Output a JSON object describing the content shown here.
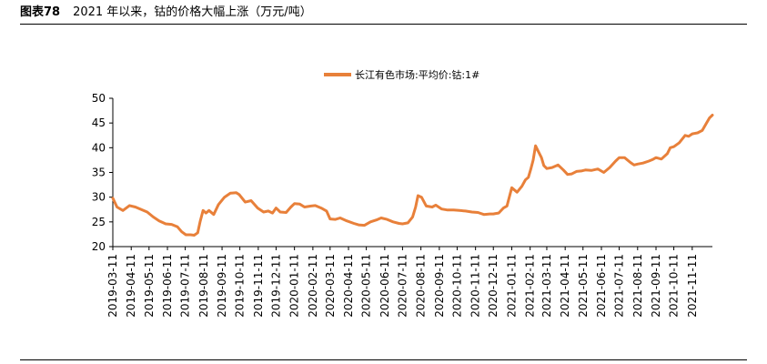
{
  "figure": {
    "number": "图表78",
    "title": "2021 年以来，钴的价格大幅上涨（万元/吨）"
  },
  "chart_data": {
    "type": "line",
    "title": "",
    "xlabel": "",
    "ylabel": "",
    "ylim": [
      20,
      50
    ],
    "yticks": [
      20,
      25,
      30,
      35,
      40,
      45,
      50
    ],
    "xlim": [
      "2019-03-11",
      "2021-12-15"
    ],
    "xticks": [
      "2019-03-11",
      "2019-04-11",
      "2019-05-11",
      "2019-06-11",
      "2019-07-11",
      "2019-08-11",
      "2019-09-11",
      "2019-10-11",
      "2019-11-11",
      "2019-12-11",
      "2020-01-11",
      "2020-02-11",
      "2020-03-11",
      "2020-04-11",
      "2020-05-11",
      "2020-06-11",
      "2020-07-11",
      "2020-08-11",
      "2020-09-11",
      "2020-10-11",
      "2020-11-11",
      "2020-12-11",
      "2021-01-11",
      "2021-02-11",
      "2021-03-11",
      "2021-04-11",
      "2021-05-11",
      "2021-06-11",
      "2021-07-11",
      "2021-08-11",
      "2021-09-11",
      "2021-10-11",
      "2021-11-11"
    ],
    "grid": false,
    "legend_position": "top",
    "color": "#E8803A",
    "series": [
      {
        "name": "长江有色市场:平均价:钴:1#",
        "x": [
          "2019-03-11",
          "2019-03-18",
          "2019-03-28",
          "2019-04-08",
          "2019-04-18",
          "2019-04-28",
          "2019-05-08",
          "2019-05-18",
          "2019-05-28",
          "2019-06-08",
          "2019-06-18",
          "2019-06-28",
          "2019-07-05",
          "2019-07-12",
          "2019-07-20",
          "2019-07-26",
          "2019-08-01",
          "2019-08-05",
          "2019-08-10",
          "2019-08-15",
          "2019-08-20",
          "2019-08-28",
          "2019-09-05",
          "2019-09-15",
          "2019-09-25",
          "2019-10-05",
          "2019-10-10",
          "2019-10-20",
          "2019-10-30",
          "2019-11-10",
          "2019-11-20",
          "2019-11-28",
          "2019-12-05",
          "2019-12-11",
          "2019-12-18",
          "2019-12-28",
          "2020-01-05",
          "2020-01-11",
          "2020-01-20",
          "2020-01-28",
          "2020-02-08",
          "2020-02-15",
          "2020-02-25",
          "2020-03-05",
          "2020-03-11",
          "2020-03-20",
          "2020-03-28",
          "2020-04-08",
          "2020-04-20",
          "2020-04-28",
          "2020-05-08",
          "2020-05-18",
          "2020-05-28",
          "2020-06-05",
          "2020-06-15",
          "2020-06-25",
          "2020-07-05",
          "2020-07-11",
          "2020-07-20",
          "2020-07-28",
          "2020-08-02",
          "2020-08-06",
          "2020-08-12",
          "2020-08-20",
          "2020-08-30",
          "2020-09-05",
          "2020-09-15",
          "2020-09-25",
          "2020-10-05",
          "2020-10-15",
          "2020-10-25",
          "2020-11-05",
          "2020-11-15",
          "2020-11-25",
          "2020-12-05",
          "2020-12-11",
          "2020-12-15",
          "2020-12-20",
          "2020-12-28",
          "2021-01-03",
          "2021-01-11",
          "2021-01-20",
          "2021-01-28",
          "2021-02-03",
          "2021-02-08",
          "2021-02-12",
          "2021-02-16",
          "2021-02-20",
          "2021-02-25",
          "2021-03-02",
          "2021-03-06",
          "2021-03-11",
          "2021-03-20",
          "2021-03-30",
          "2021-04-08",
          "2021-04-15",
          "2021-04-22",
          "2021-04-30",
          "2021-05-08",
          "2021-05-15",
          "2021-05-25",
          "2021-06-05",
          "2021-06-15",
          "2021-06-25",
          "2021-07-05",
          "2021-07-11",
          "2021-07-20",
          "2021-07-30",
          "2021-08-05",
          "2021-08-11",
          "2021-08-20",
          "2021-08-30",
          "2021-09-05",
          "2021-09-11",
          "2021-09-20",
          "2021-09-30",
          "2021-10-05",
          "2021-10-11",
          "2021-10-20",
          "2021-10-30",
          "2021-11-05",
          "2021-11-11",
          "2021-11-20",
          "2021-11-28",
          "2021-12-05",
          "2021-12-10",
          "2021-12-15"
        ],
        "values": [
          29.8,
          28.0,
          27.3,
          28.3,
          28.0,
          27.5,
          27.0,
          26.0,
          25.2,
          24.6,
          24.5,
          24.0,
          23.0,
          22.4,
          22.4,
          22.3,
          22.8,
          25.0,
          27.3,
          26.8,
          27.3,
          26.5,
          28.5,
          30.0,
          30.8,
          30.9,
          30.5,
          29.0,
          29.3,
          27.8,
          27.0,
          27.2,
          26.8,
          27.8,
          27.0,
          26.9,
          28.0,
          28.7,
          28.6,
          28.0,
          28.2,
          28.3,
          27.8,
          27.2,
          25.6,
          25.5,
          25.8,
          25.2,
          24.7,
          24.4,
          24.3,
          25.0,
          25.4,
          25.8,
          25.5,
          25.0,
          24.7,
          24.6,
          24.8,
          26.0,
          28.0,
          30.3,
          30.0,
          28.2,
          28.0,
          28.4,
          27.6,
          27.4,
          27.4,
          27.3,
          27.2,
          27.0,
          26.9,
          26.5,
          26.6,
          26.6,
          26.7,
          26.8,
          27.8,
          28.2,
          31.9,
          31.0,
          32.2,
          33.5,
          34.0,
          35.6,
          37.5,
          40.4,
          39.2,
          38.0,
          36.4,
          35.8,
          36.0,
          36.5,
          35.5,
          34.6,
          34.7,
          35.2,
          35.3,
          35.5,
          35.4,
          35.7,
          35.0,
          36.0,
          37.3,
          38.0,
          38.0,
          37.0,
          36.5,
          36.7,
          36.9,
          37.3,
          37.6,
          38.0,
          37.7,
          38.8,
          40.0,
          40.2,
          41.0,
          42.5,
          42.3,
          42.8,
          43.0,
          43.5,
          45.0,
          46.0,
          46.6
        ]
      }
    ]
  }
}
